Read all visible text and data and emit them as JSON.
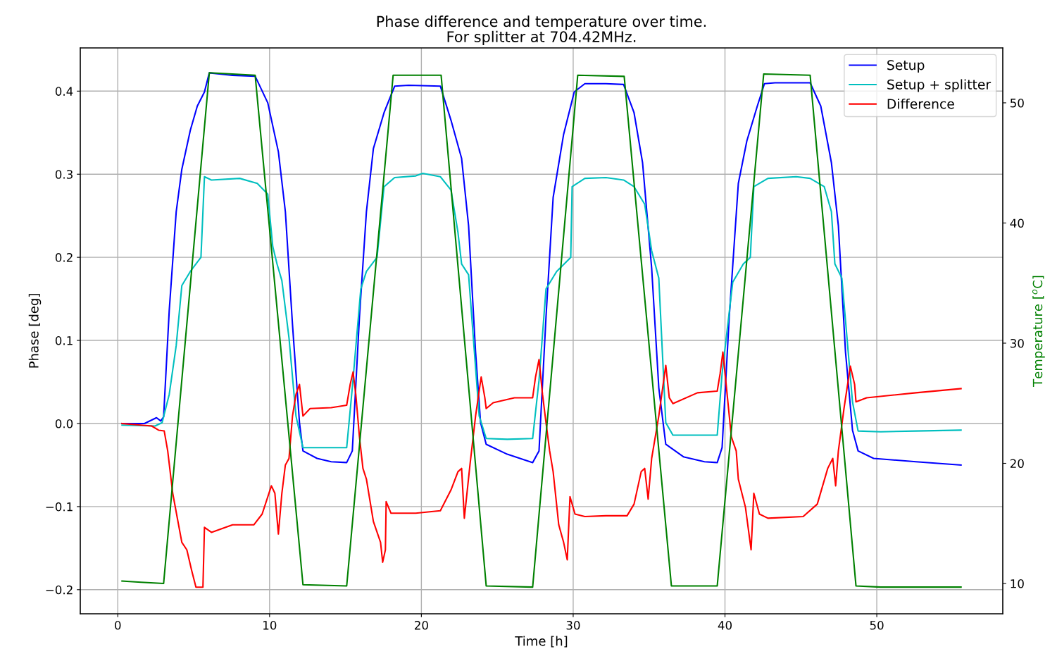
{
  "chart_data": {
    "type": "line",
    "title": "Phase difference and temperature over time.\nFor splitter at 704.42MHz.",
    "xlabel": "Time [h]",
    "ylabel": "Phase [deg]",
    "y2label": "Temperature [$^{o}$C]",
    "xlim": [
      -2.47,
      58.3
    ],
    "xticks": [
      0,
      10,
      20,
      30,
      40,
      50
    ],
    "ylim": [
      -0.229,
      0.452
    ],
    "yticks": [
      {
        "value": -0.2,
        "label": "−0.2"
      },
      {
        "value": -0.1,
        "label": "−0.1"
      },
      {
        "value": 0,
        "label": "0.0"
      },
      0.1,
      0.2,
      0.3,
      0.4
    ],
    "y2lim": [
      7.48,
      54.57
    ],
    "y2ticks": [
      10,
      20,
      30,
      40,
      50
    ],
    "grid": true,
    "legend": "top right",
    "line_style": "solid",
    "marker": "none",
    "series": [
      {
        "name": "Setup",
        "color": "#0000ff",
        "x": [
          0.28,
          1.76,
          2.55,
          2.83,
          3.02,
          3.39,
          3.85,
          4.22,
          4.78,
          5.24,
          5.71,
          6.03,
          7.56,
          9.05,
          9.88,
          10.58,
          11.04,
          11.51,
          11.97,
          12.2,
          13.13,
          14.06,
          15.08,
          15.45,
          15.92,
          16.38,
          16.84,
          17.54,
          18.24,
          19.16,
          21.25,
          21.95,
          22.65,
          23.11,
          23.57,
          23.9,
          24.27,
          25.66,
          27.33,
          27.75,
          28.21,
          28.68,
          29.37,
          30.07,
          30.77,
          32.16,
          33.32,
          34.01,
          34.57,
          35.17,
          35.64,
          36.1,
          37.26,
          38.65,
          39.49,
          39.81,
          40.28,
          40.88,
          41.44,
          42.13,
          42.6,
          43.29,
          45.61,
          46.31,
          47.01,
          47.47,
          47.94,
          48.4,
          48.77,
          49.79,
          52.58,
          55.55
        ],
        "values": [
          0,
          0,
          0.007,
          0.003,
          0.008,
          0.136,
          0.255,
          0.306,
          0.353,
          0.382,
          0.399,
          0.422,
          0.419,
          0.418,
          0.386,
          0.327,
          0.255,
          0.119,
          0.001,
          -0.033,
          -0.042,
          -0.046,
          -0.047,
          -0.033,
          0.128,
          0.255,
          0.331,
          0.374,
          0.406,
          0.407,
          0.406,
          0.365,
          0.319,
          0.238,
          0.086,
          0.001,
          -0.025,
          -0.037,
          -0.047,
          -0.033,
          0.128,
          0.272,
          0.348,
          0.399,
          0.409,
          0.409,
          0.408,
          0.374,
          0.314,
          0.187,
          0.043,
          -0.025,
          -0.04,
          -0.046,
          -0.047,
          -0.029,
          0.128,
          0.289,
          0.34,
          0.382,
          0.409,
          0.41,
          0.41,
          0.382,
          0.314,
          0.238,
          0.086,
          -0.008,
          -0.033,
          -0.042,
          -0.046,
          -0.05
        ]
      },
      {
        "name": "Setup + splitter",
        "color": "#00bfbf",
        "x": [
          0.28,
          2.46,
          2.92,
          3.39,
          3.85,
          4.22,
          4.78,
          5.48,
          5.71,
          6.17,
          8.03,
          9.19,
          9.88,
          10.21,
          10.49,
          10.81,
          11.28,
          11.74,
          12.2,
          14.06,
          15.08,
          15.45,
          16.01,
          16.38,
          17.08,
          17.54,
          18.24,
          19.63,
          20.09,
          21.25,
          21.95,
          22.41,
          22.65,
          23.11,
          23.81,
          24.27,
          25.66,
          27.33,
          27.75,
          28.21,
          28.91,
          29.84,
          29.93,
          30.77,
          32.16,
          33.32,
          34.01,
          34.71,
          35.17,
          35.64,
          36.1,
          36.57,
          37.96,
          39.49,
          39.81,
          40.51,
          41.21,
          41.67,
          41.9,
          42.83,
          44.69,
          45.61,
          46.54,
          47.01,
          47.24,
          47.7,
          48.4,
          48.77,
          50.26,
          52.58,
          55.55
        ],
        "values": [
          -0.002,
          -0.003,
          0.001,
          0.035,
          0.094,
          0.166,
          0.183,
          0.2,
          0.297,
          0.293,
          0.295,
          0.289,
          0.276,
          0.213,
          0.192,
          0.172,
          0.103,
          0.009,
          -0.029,
          -0.029,
          -0.029,
          0.043,
          0.162,
          0.183,
          0.2,
          0.285,
          0.296,
          0.298,
          0.301,
          0.297,
          0.281,
          0.23,
          0.192,
          0.179,
          0.009,
          -0.018,
          -0.019,
          -0.018,
          0.052,
          0.162,
          0.183,
          0.2,
          0.285,
          0.295,
          0.296,
          0.293,
          0.285,
          0.264,
          0.208,
          0.175,
          0.001,
          -0.014,
          -0.014,
          -0.014,
          0.06,
          0.17,
          0.192,
          0.2,
          0.285,
          0.295,
          0.297,
          0.295,
          0.285,
          0.255,
          0.192,
          0.175,
          0.026,
          -0.009,
          -0.01,
          -0.009,
          -0.008
        ]
      },
      {
        "name": "Difference",
        "color": "#ff0000",
        "x": [
          0.28,
          1.53,
          2.23,
          2.69,
          3.06,
          3.29,
          3.62,
          4.22,
          4.55,
          4.87,
          5.15,
          5.61,
          5.71,
          6.17,
          7.56,
          8.96,
          9.51,
          10.12,
          10.35,
          10.58,
          10.81,
          11.04,
          11.28,
          11.51,
          11.74,
          11.97,
          12.2,
          12.67,
          14.06,
          15.08,
          15.31,
          15.5,
          15.68,
          15.92,
          16.15,
          16.38,
          16.84,
          17.31,
          17.45,
          17.63,
          17.68,
          18.0,
          19.63,
          21.25,
          21.95,
          22.41,
          22.65,
          22.83,
          23.2,
          23.57,
          23.94,
          24.18,
          24.27,
          24.73,
          26.13,
          27.33,
          27.52,
          27.75,
          27.98,
          28.21,
          28.45,
          28.68,
          29.05,
          29.37,
          29.61,
          29.79,
          30.12,
          30.77,
          32.16,
          33.55,
          34.01,
          34.48,
          34.71,
          34.94,
          35.17,
          35.64,
          36.1,
          36.33,
          36.57,
          38.19,
          39.49,
          39.68,
          39.86,
          40.05,
          40.42,
          40.74,
          40.88,
          41.35,
          41.72,
          41.9,
          42.27,
          42.83,
          45.15,
          46.08,
          46.77,
          47.1,
          47.29,
          47.47,
          47.84,
          48.26,
          48.54,
          48.63,
          49.33,
          52.58,
          55.55
        ],
        "values": [
          0,
          -0.002,
          -0.003,
          -0.008,
          -0.009,
          -0.033,
          -0.084,
          -0.143,
          -0.152,
          -0.177,
          -0.197,
          -0.197,
          -0.125,
          -0.131,
          -0.122,
          -0.122,
          -0.109,
          -0.075,
          -0.084,
          -0.133,
          -0.084,
          -0.05,
          -0.042,
          0.009,
          0.035,
          0.047,
          0.009,
          0.018,
          0.019,
          0.022,
          0.047,
          0.062,
          0.035,
          -0.016,
          -0.054,
          -0.067,
          -0.118,
          -0.143,
          -0.167,
          -0.152,
          -0.094,
          -0.108,
          -0.108,
          -0.105,
          -0.08,
          -0.058,
          -0.054,
          -0.114,
          -0.05,
          0.009,
          0.056,
          0.031,
          0.018,
          0.025,
          0.031,
          0.031,
          0.056,
          0.077,
          0.035,
          0.001,
          -0.033,
          -0.058,
          -0.122,
          -0.143,
          -0.164,
          -0.088,
          -0.109,
          -0.112,
          -0.111,
          -0.111,
          -0.097,
          -0.058,
          -0.054,
          -0.091,
          -0.042,
          0.009,
          0.07,
          0.031,
          0.024,
          0.037,
          0.039,
          0.06,
          0.086,
          0.052,
          -0.016,
          -0.033,
          -0.067,
          -0.101,
          -0.152,
          -0.084,
          -0.109,
          -0.114,
          -0.112,
          -0.097,
          -0.054,
          -0.042,
          -0.075,
          -0.033,
          0.018,
          0.069,
          0.047,
          0.026,
          0.031,
          0.037,
          0.042
        ]
      },
      {
        "color": "#008000",
        "axis": "y2",
        "x": [
          0.28,
          1.53,
          3.02,
          6.03,
          9.05,
          12.2,
          15.08,
          18.14,
          21.3,
          24.27,
          27.33,
          30.3,
          33.36,
          36.47,
          39.49,
          42.55,
          45.61,
          48.63,
          50.26,
          55.55
        ],
        "values": [
          10.2,
          10.1,
          10.0,
          52.5,
          52.3,
          9.9,
          9.8,
          52.3,
          52.3,
          9.8,
          9.7,
          52.3,
          52.2,
          9.8,
          9.8,
          52.4,
          52.3,
          9.8,
          9.7,
          9.7
        ]
      }
    ]
  }
}
